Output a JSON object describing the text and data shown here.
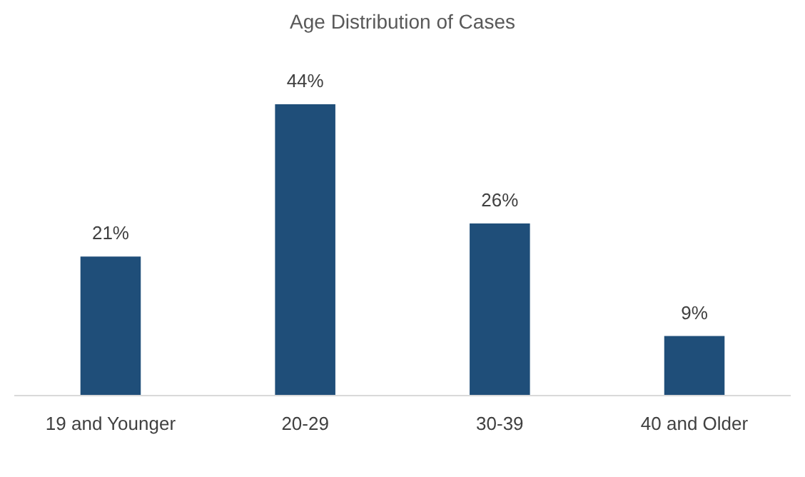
{
  "chart_data": {
    "type": "bar",
    "title": "Age Distribution of Cases",
    "categories": [
      "19 and Younger",
      "20-29",
      "30-39",
      "40 and Older"
    ],
    "values": [
      21,
      44,
      26,
      9
    ],
    "color": "#1f4e79",
    "value_labels": [
      "21%",
      "44%",
      "26%",
      "9%"
    ]
  }
}
